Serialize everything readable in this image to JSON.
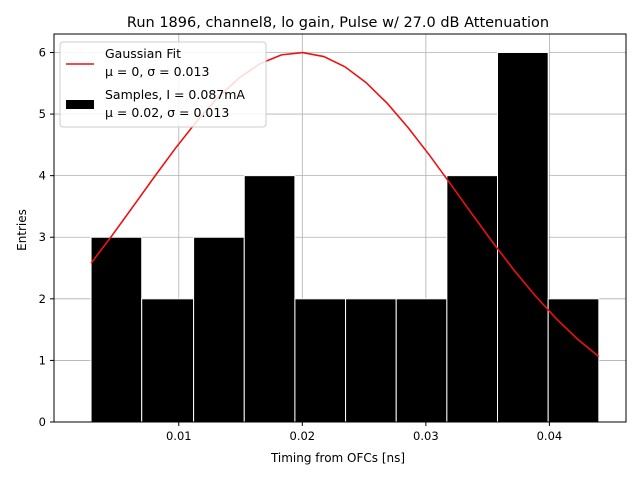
{
  "chart_data": {
    "type": "bar",
    "title": "Run 1896, channel8, lo gain, Pulse w/ 27.0 dB Attenuation",
    "xlabel": "Timing from OFCs [ns]",
    "ylabel": "Entries",
    "xlim": [
      -0.0001,
      0.0462
    ],
    "ylim": [
      0,
      6.3
    ],
    "xticks": [
      0.01,
      0.02,
      0.03,
      0.04
    ],
    "xtick_labels": [
      "0.01",
      "0.02",
      "0.03",
      "0.04"
    ],
    "yticks": [
      0,
      1,
      2,
      3,
      4,
      5,
      6
    ],
    "ytick_labels": [
      "0",
      "1",
      "2",
      "3",
      "4",
      "5",
      "6"
    ],
    "grid": true,
    "legend_position": "top-left",
    "histogram": {
      "name": "Samples, I = 0.087mA",
      "name_line2": "μ = 0.02, σ = 0.013",
      "color": "#000000",
      "edge_color": "#ffffff",
      "bin_edges": [
        0.0029,
        0.007,
        0.0112,
        0.0153,
        0.0194,
        0.0235,
        0.0276,
        0.0317,
        0.0358,
        0.0399,
        0.044
      ],
      "counts": [
        3,
        2,
        3,
        4,
        2,
        2,
        2,
        4,
        6,
        2
      ]
    },
    "fit": {
      "name": "Gaussian Fit",
      "name_line2": "μ = 0, σ = 0.013",
      "color": "#ee1111",
      "mu": 0.0198,
      "sigma": 0.013,
      "amplitude": 6.0,
      "x_range": [
        0.0029,
        0.044
      ]
    }
  }
}
